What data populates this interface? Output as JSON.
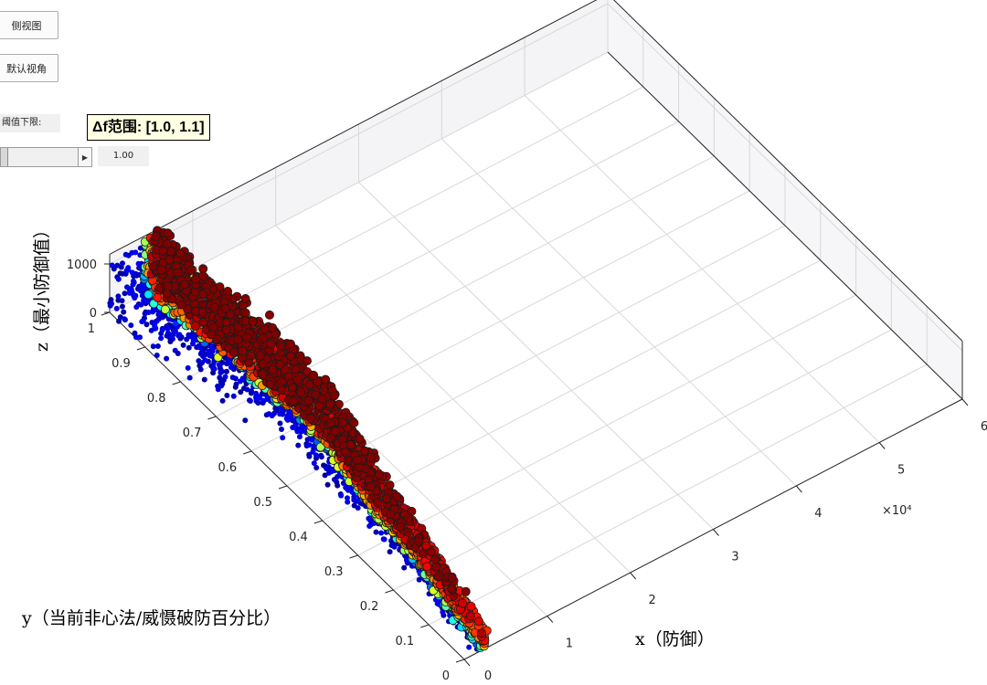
{
  "controls": {
    "side_view_label": "侧视图",
    "default_view_label": "默认视角",
    "threshold_label": "阈值下限:",
    "threshold_value": "1.00",
    "threshold_fraction": 0.0
  },
  "tooltip": {
    "text": "Δf范围: [1.0, 1.1]"
  },
  "chart_data": {
    "type": "scatter",
    "x_label": "x（防御）",
    "y_label": "y（当前非心法/威慑破防百分比）",
    "z_label": "z（最小防御值）",
    "x_exponent_label": "×10⁴",
    "x_ticks": [
      "0",
      "1",
      "2",
      "3",
      "4",
      "5",
      "6"
    ],
    "y_ticks": [
      "0",
      "0.1",
      "0.2",
      "0.3",
      "0.4",
      "0.5",
      "0.6",
      "0.7",
      "0.8",
      "0.9",
      "1"
    ],
    "z_ticks": [
      "0",
      "1000"
    ],
    "xlim": [
      0,
      60000
    ],
    "ylim": [
      0,
      1
    ],
    "zlim": [
      0,
      1200
    ],
    "grid": true,
    "colormap": "jet",
    "color_metric": "Δf",
    "boundary_curve": {
      "y": [
        0,
        0.1,
        0.2,
        0.3,
        0.4,
        0.5,
        0.6,
        0.7,
        0.8,
        0.9,
        1.0
      ],
      "x": [
        2500,
        3000,
        4000,
        4500,
        5000,
        6000,
        6500,
        6000,
        5500,
        5000,
        4500
      ]
    },
    "point_count": 5200
  }
}
